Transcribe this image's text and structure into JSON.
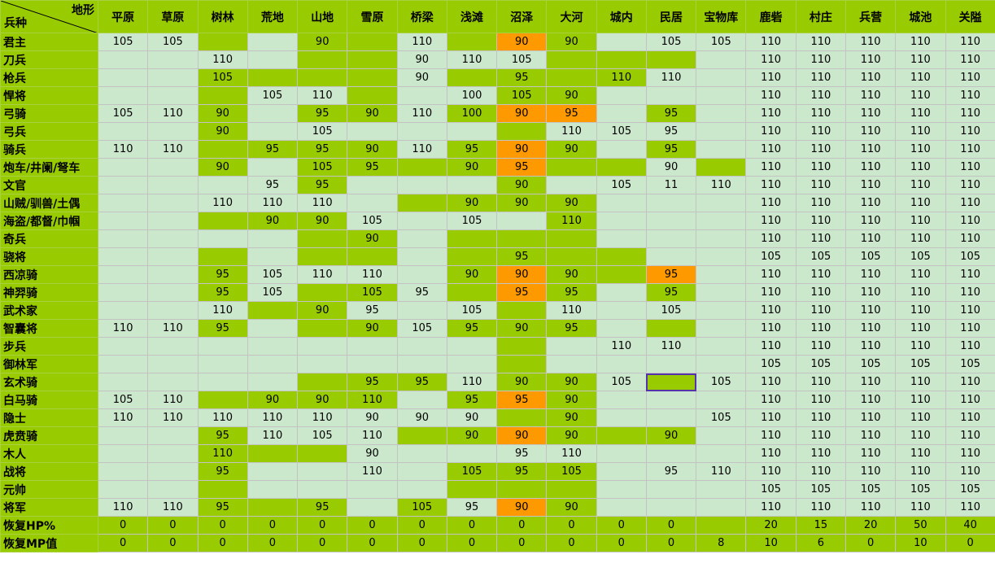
{
  "corner": {
    "top": "地形",
    "bottom": "兵种"
  },
  "columns": [
    "平原",
    "草原",
    "树林",
    "荒地",
    "山地",
    "雪原",
    "桥梁",
    "浅滩",
    "沼泽",
    "大河",
    "城内",
    "民居",
    "宝物库",
    "鹿砦",
    "村庄",
    "兵营",
    "城池",
    "关隘"
  ],
  "colors": {
    "g": "#99cc00",
    "l": "#cce8cc",
    "o": "#ff9900",
    "w": "#ffffff"
  },
  "legend": {
    "g": "bright green cell",
    "l": "pale green cell",
    "o": "orange highlighted cell"
  },
  "rows": [
    {
      "label": "君主",
      "values": [
        "105",
        "105",
        "",
        "",
        "90",
        "",
        "110",
        "",
        "90",
        "90",
        "",
        "105",
        "105",
        "110",
        "110",
        "110",
        "110",
        "110"
      ],
      "colors": "llglgglgoglllllllll"
    },
    {
      "label": "刀兵",
      "values": [
        "",
        "",
        "110",
        "",
        "",
        "",
        "90",
        "110",
        "105",
        "",
        "",
        "",
        "",
        "110",
        "110",
        "110",
        "110",
        "110"
      ],
      "colors": "llllgglllgggllllll"
    },
    {
      "label": "枪兵",
      "values": [
        "",
        "",
        "105",
        "",
        "",
        "",
        "90",
        "",
        "95",
        "",
        "110",
        "110",
        "",
        "110",
        "110",
        "110",
        "110",
        "110"
      ],
      "colors": "llgggglggggllllllll"
    },
    {
      "label": "悍将",
      "values": [
        "",
        "",
        "",
        "105",
        "110",
        "",
        "",
        "100",
        "105",
        "90",
        "",
        "",
        "",
        "110",
        "110",
        "110",
        "110",
        "110"
      ],
      "colors": "llgllgllggllllllll"
    },
    {
      "label": "弓骑",
      "values": [
        "105",
        "110",
        "90",
        "",
        "95",
        "90",
        "110",
        "100",
        "90",
        "95",
        "",
        "95",
        "",
        "110",
        "110",
        "110",
        "110",
        "110"
      ],
      "colors": "llglgglgoolglllll"
    },
    {
      "label": "弓兵",
      "values": [
        "",
        "",
        "90",
        "",
        "105",
        "",
        "",
        "",
        "",
        "110",
        "105",
        "95",
        "",
        "110",
        "110",
        "110",
        "110",
        "110"
      ],
      "colors": "llglllllglllllllll"
    },
    {
      "label": "骑兵",
      "values": [
        "110",
        "110",
        "",
        "95",
        "95",
        "90",
        "110",
        "95",
        "90",
        "90",
        "",
        "95",
        "",
        "110",
        "110",
        "110",
        "110",
        "110"
      ],
      "colors": "llgggglgoglglllll"
    },
    {
      "label": "炮车/井阑/弩车",
      "values": [
        "",
        "",
        "90",
        "",
        "105",
        "95",
        "",
        "90",
        "95",
        "",
        "",
        "90",
        "",
        "110",
        "110",
        "110",
        "110",
        "110"
      ],
      "colors": "llglggggogglglllll"
    },
    {
      "label": "文官",
      "values": [
        "",
        "",
        "",
        "95",
        "95",
        "",
        "",
        "",
        "90",
        "",
        "105",
        "11",
        "110",
        "110",
        "110",
        "110",
        "110",
        "110"
      ],
      "colors": "llllglllglllllllll"
    },
    {
      "label": "山贼/驯兽/土偶",
      "values": [
        "",
        "",
        "110",
        "110",
        "110",
        "",
        "",
        "90",
        "90",
        "90",
        "",
        "",
        "",
        "110",
        "110",
        "110",
        "110",
        "110"
      ],
      "colors": "llllllgggglllllll"
    },
    {
      "label": "海盗/都督/巾帼",
      "values": [
        "",
        "",
        "",
        "90",
        "90",
        "105",
        "",
        "105",
        "",
        "110",
        "",
        "",
        "",
        "110",
        "110",
        "110",
        "110",
        "110"
      ],
      "colors": "llgggllllglllllllll"
    },
    {
      "label": "奇兵",
      "values": [
        "",
        "",
        "",
        "",
        "",
        "90",
        "",
        "",
        "",
        "",
        "",
        "",
        "",
        "110",
        "110",
        "110",
        "110",
        "110"
      ],
      "colors": "llllgglggglllllll"
    },
    {
      "label": "骁将",
      "values": [
        "",
        "",
        "",
        "",
        "",
        "",
        "",
        "",
        "95",
        "",
        "",
        "",
        "",
        "105",
        "105",
        "105",
        "105",
        "105"
      ],
      "colors": "llglgglgggglllllll"
    },
    {
      "label": "西凉骑",
      "values": [
        "",
        "",
        "95",
        "105",
        "110",
        "110",
        "",
        "90",
        "90",
        "90",
        "",
        "95",
        "",
        "110",
        "110",
        "110",
        "110",
        "110"
      ],
      "colors": "llgllllgoggolllll"
    },
    {
      "label": "神羿骑",
      "values": [
        "",
        "",
        "95",
        "105",
        "",
        "105",
        "95",
        "",
        "95",
        "95",
        "",
        "95",
        "",
        "110",
        "110",
        "110",
        "110",
        "110"
      ],
      "colors": "llglgglgoglglllll"
    },
    {
      "label": "武术家",
      "values": [
        "",
        "",
        "110",
        "",
        "90",
        "95",
        "",
        "105",
        "",
        "110",
        "",
        "105",
        "",
        "110",
        "110",
        "110",
        "110",
        "110"
      ],
      "colors": "lllgglllglllllllll"
    },
    {
      "label": "智囊将",
      "values": [
        "110",
        "110",
        "95",
        "",
        "",
        "90",
        "105",
        "95",
        "90",
        "95",
        "",
        "",
        "",
        "110",
        "110",
        "110",
        "110",
        "110"
      ],
      "colors": "llglgglggglglllll"
    },
    {
      "label": "步兵",
      "values": [
        "",
        "",
        "",
        "",
        "",
        "",
        "",
        "",
        "",
        "",
        "110",
        "110",
        "",
        "110",
        "110",
        "110",
        "110",
        "110"
      ],
      "colors": "llllllllgllllllllll"
    },
    {
      "label": "御林军",
      "values": [
        "",
        "",
        "",
        "",
        "",
        "",
        "",
        "",
        "",
        "",
        "",
        "",
        "",
        "105",
        "105",
        "105",
        "105",
        "105"
      ],
      "colors": "llllllllglllllllll"
    },
    {
      "label": "玄术骑",
      "values": [
        "",
        "",
        "",
        "",
        "",
        "95",
        "95",
        "110",
        "90",
        "90",
        "105",
        "",
        "105",
        "110",
        "110",
        "110",
        "110",
        "110"
      ],
      "colors": "llllggglgglglllll"
    },
    {
      "label": "白马骑",
      "values": [
        "105",
        "110",
        "",
        "90",
        "90",
        "110",
        "",
        "95",
        "95",
        "90",
        "",
        "",
        "",
        "110",
        "110",
        "110",
        "110",
        "110"
      ],
      "colors": "llgggglgoglllllll"
    },
    {
      "label": "隐士",
      "values": [
        "110",
        "110",
        "110",
        "110",
        "110",
        "90",
        "90",
        "90",
        "",
        "90",
        "",
        "",
        "105",
        "110",
        "110",
        "110",
        "110",
        "110"
      ],
      "colors": "llllllllgglllllll"
    },
    {
      "label": "虎贲骑",
      "values": [
        "",
        "",
        "95",
        "110",
        "105",
        "110",
        "",
        "90",
        "90",
        "90",
        "",
        "90",
        "",
        "110",
        "110",
        "110",
        "110",
        "110"
      ],
      "colors": "llglllggoggglllll"
    },
    {
      "label": "木人",
      "values": [
        "",
        "",
        "110",
        "",
        "",
        "90",
        "",
        "",
        "95",
        "110",
        "",
        "",
        "",
        "110",
        "110",
        "110",
        "110",
        "110"
      ],
      "colors": "llggglllllllllllll"
    },
    {
      "label": "战将",
      "values": [
        "",
        "",
        "95",
        "",
        "",
        "110",
        "",
        "105",
        "95",
        "105",
        "",
        "95",
        "110",
        "110",
        "110",
        "110",
        "110",
        "110"
      ],
      "colors": "llgllllgggllllllll"
    },
    {
      "label": "元帅",
      "values": [
        "",
        "",
        "",
        "",
        "",
        "",
        "",
        "",
        "",
        "",
        "",
        "",
        "",
        "105",
        "105",
        "105",
        "105",
        "105"
      ],
      "colors": "llgllllggglllllll"
    },
    {
      "label": "将军",
      "values": [
        "110",
        "110",
        "95",
        "",
        "95",
        "",
        "105",
        "95",
        "90",
        "90",
        "",
        "",
        "",
        "110",
        "110",
        "110",
        "110",
        "110"
      ],
      "colors": "llggglgloglllllll"
    },
    {
      "label": "恢复HP%",
      "values": [
        "0",
        "0",
        "0",
        "0",
        "0",
        "0",
        "0",
        "0",
        "0",
        "0",
        "0",
        "0",
        "",
        "20",
        "15",
        "20",
        "50",
        "40"
      ],
      "colors": "gggggggggggggggggg"
    },
    {
      "label": "恢复MP值",
      "values": [
        "0",
        "0",
        "0",
        "0",
        "0",
        "0",
        "0",
        "0",
        "0",
        "0",
        "0",
        "0",
        "8",
        "10",
        "6",
        "0",
        "10",
        "0"
      ],
      "colors": "gggggggggggggggggg"
    }
  ]
}
